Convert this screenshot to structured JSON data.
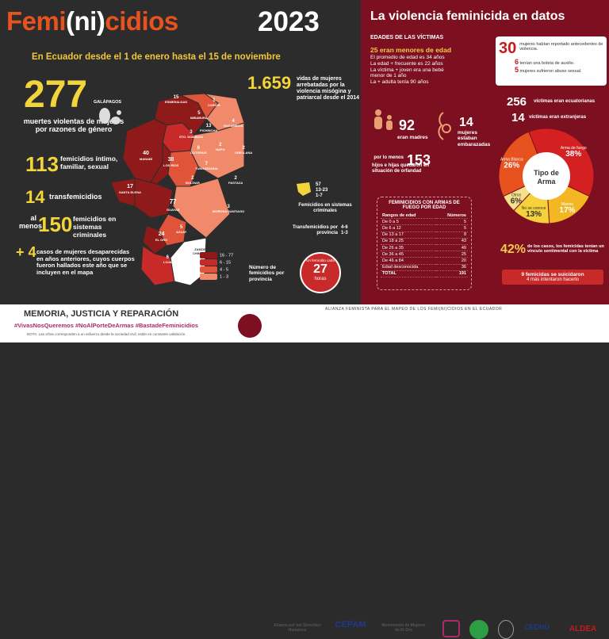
{
  "header": {
    "title_part1": "Femi",
    "title_ni": "(ni)",
    "title_part2": "cidios",
    "year": "2023",
    "subtitle": "En Ecuador desde el 1 de enero hasta el 15 de noviembre"
  },
  "left_stats": {
    "total": "277",
    "total_text": "muertes violentas de mujeres por razones de género",
    "intimo_num": "113",
    "intimo_text": "femicidios íntimo, familiar, sexual",
    "trans_num": "14",
    "trans_text": "transfemicidios",
    "crim_pre": "al menos",
    "crim_num": "150",
    "crim_text": "femicidios en sistemas criminales",
    "desap_num": "+ 4",
    "desap_text": "casos de mujeres desaparecidas en años anteriores, cuyos cuerpos fueron hallados este año que se incluyen en el mapa"
  },
  "since2014": {
    "num": "1.659",
    "text": "vidas de mujeres arrebatadas por la violencia misógina y patriarcal desde el 2014"
  },
  "map": {
    "galapagos": "GALÁPAGOS",
    "provinces": [
      {
        "n": "15",
        "name": "ESMERALDAS"
      },
      {
        "n": "1",
        "name": "CARCHI"
      },
      {
        "n": "5",
        "name": "IMBABURA"
      },
      {
        "n": "4",
        "name": "SUCUMBÍOS"
      },
      {
        "n": "13",
        "name": "PICHINCHA"
      },
      {
        "n": "3",
        "name": "STO. DOMINGO"
      },
      {
        "n": "40",
        "name": "MANABÍ"
      },
      {
        "n": "38",
        "name": "LOS RÍOS"
      },
      {
        "n": "6",
        "name": "COTOPAXI"
      },
      {
        "n": "7",
        "name": "TUNGURAHUA"
      },
      {
        "n": "2",
        "name": "NAPO"
      },
      {
        "n": "2",
        "name": "ORELLANA"
      },
      {
        "n": "2",
        "name": "BOLÍVAR"
      },
      {
        "n": "77",
        "name": "GUAYAS"
      },
      {
        "n": "17",
        "name": "SANTA ELENA"
      },
      {
        "n": "2",
        "name": "PASTAZA"
      },
      {
        "n": "3",
        "name": "MORONA SANTIAGO"
      },
      {
        "n": "5",
        "name": "AZUAY"
      },
      {
        "n": "24",
        "name": "EL ORO"
      },
      {
        "n": "6",
        "name": "LOJA"
      },
      {
        "n": "ZAMORA CHINCHIPE",
        "name": ""
      },
      {
        "n": "CAÑAR",
        "name": ""
      },
      {
        "n": "CHIMBORAZO",
        "name": ""
      }
    ],
    "crim_legend": {
      "n1": "57",
      "n2": "13-23",
      "n3": "1-7",
      "label": "Femicidios en sistemas criminales"
    },
    "trans_legend": {
      "n1": "4-6",
      "n2": "1-3",
      "label": "Transfemicidios por provincia"
    },
    "scale": [
      {
        "label": "16 - 77",
        "color": "#8e1a1a"
      },
      {
        "label": "6 - 15",
        "color": "#c82a2a"
      },
      {
        "label": "4 - 5",
        "color": "#e0553a"
      },
      {
        "label": "1 - 3",
        "color": "#f08a6b"
      }
    ],
    "scale_title": "Número de femicidios por provincia",
    "clock_text": "Un femicidio cada",
    "clock_num": "27",
    "clock_unit": "horas"
  },
  "right": {
    "title": "La violencia feminicida en datos",
    "edades_title": "EDADES DE LAS VÍCTIMAS",
    "edades": [
      "25 eran menores de edad",
      "El promedio de edad es 34 años",
      "La edad + frecuente es 22 años",
      "La víctima + joven era una bebé menor de 1 año",
      "La + adulta tenía 90 años"
    ],
    "alert_num": "30",
    "alert_text": "mujeres habían reportado antecedentes de violencia.",
    "alert2_num": "6",
    "alert2_text": "tenían una boleta de auxilio.",
    "alert3_num": "5",
    "alert3_text": "mujeres sufrieron abuso sexual.",
    "madres_num": "92",
    "madres_text": "eran madres",
    "emb_num": "14",
    "emb_text": "mujeres estaban embarazadas",
    "orf_pre": "por lo menos",
    "orf_num": "153",
    "orf_text": "hijos e hijas quedaron en situación de orfandad",
    "ecu_num": "256",
    "ecu_text": "víctimas eran ecuatorianas",
    "ext_num": "14",
    "ext_text": "víctimas eran extranjeras",
    "armas_title": "FEMINICIDIOS CON ARMAS DE FUEGO POR EDAD",
    "armas_headers": [
      "Rangos de edad",
      "Números"
    ],
    "armas_rows": [
      [
        "De 0 a 5",
        "5"
      ],
      [
        "De 6 a 12",
        "5"
      ],
      [
        "De 13 a 17",
        "8"
      ],
      [
        "De 18 a 25",
        "43"
      ],
      [
        "De 26 a 35",
        "49"
      ],
      [
        "De 36 a 45",
        "25"
      ],
      [
        "De 46 a 84",
        "20"
      ],
      [
        "Edad desconocida",
        "36"
      ],
      [
        "TOTAL",
        "191"
      ]
    ],
    "pie_center": "Tipo de Arma",
    "pie_labels": [
      "Arma Blanca",
      "Arma de fuego",
      "Manos",
      "No se conoce",
      "Otros"
    ],
    "pct_num": "42%",
    "pct_text": "de los casos, los femicidas tenían un vínculo sentimental con la víctima",
    "suic_text": "9 femicidas se suicidaron",
    "suic_text2": "4 más intentaron hacerlo"
  },
  "chart_data": {
    "type": "pie",
    "title": "Tipo de Arma",
    "categories": [
      "Arma Blanca",
      "Arma de fuego",
      "Manos",
      "No se conoce",
      "Otros"
    ],
    "values": [
      26,
      38,
      17,
      13,
      6
    ],
    "colors": [
      "#e8521f",
      "#d42020",
      "#f2b722",
      "#f5d23a",
      "#f7e08a"
    ]
  },
  "footer": {
    "motto": "MEMORIA, JUSTICIA Y REPARACIÓN",
    "hashtags": "#VivasNosQueremos  #NoAlPorteDeArmas  #BastadeFeminicidios",
    "note": "NOTA: Las cifras corresponden a un esfuerzo desde la sociedad civil; están en constante validación.",
    "alianza": "ALIANZA FEMINISTA PARA EL MAPEO DE LOS FEMI(NI)CIDIOS EN EL ECUADOR",
    "logos": [
      "Alianza por los Derechos Humanos",
      "CEPAM",
      "Movimiento de Mujeres de El Oro",
      "CEDHU",
      "ALDEA"
    ]
  }
}
